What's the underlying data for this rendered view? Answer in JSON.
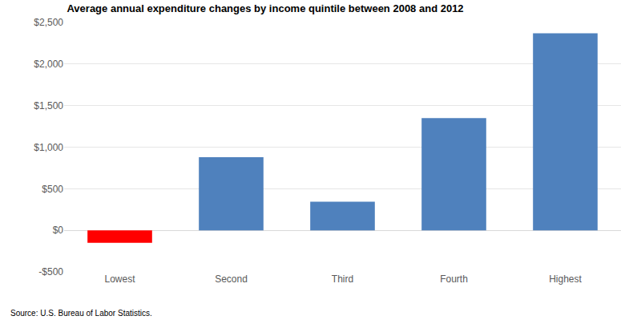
{
  "chart_data": {
    "type": "bar",
    "title": "Average annual expenditure changes by income quintile between 2008 and 2012",
    "source": "Source: U.S. Bureau of Labor Statistics.",
    "categories": [
      "Lowest",
      "Second",
      "Third",
      "Fourth",
      "Highest"
    ],
    "values": [
      -150,
      880,
      345,
      1350,
      2370
    ],
    "colors": [
      "#ff0000",
      "#4f81bd",
      "#4f81bd",
      "#4f81bd",
      "#4f81bd"
    ],
    "ylim": [
      -500,
      2500
    ],
    "yticks": [
      {
        "value": -500,
        "label": "-$500"
      },
      {
        "value": 0,
        "label": "$0"
      },
      {
        "value": 500,
        "label": "$500"
      },
      {
        "value": 1000,
        "label": "$1,000"
      },
      {
        "value": 1500,
        "label": "$1,500"
      },
      {
        "value": 2000,
        "label": "$2,000"
      },
      {
        "value": 2500,
        "label": "$2,500"
      }
    ],
    "grid": true
  }
}
